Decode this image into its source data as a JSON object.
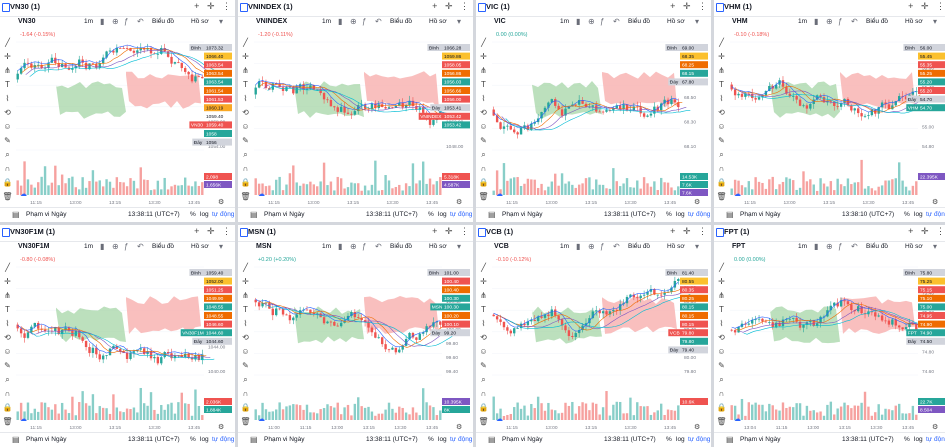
{
  "panels": [
    {
      "title": "VN30 (1)",
      "symbol": "VN30",
      "change": "-1.64 (-0.15%)",
      "change_color": "#ef5350",
      "timeframe": "1m",
      "indicators_label": "Biểu đồ",
      "template_label": "Hồ sơ",
      "range_label": "Phạm vi Ngày",
      "time_label": "13:38:11 (UTC+7)",
      "pct_label": "%",
      "log_label": "log",
      "auto_label": "tự động",
      "x_ticks": [
        "11:15",
        "13:00",
        "13:15",
        "13:30",
        "13:45"
      ],
      "price_labels": [
        {
          "text": "Đỉnh",
          "price": "1073.32",
          "color": "#d1d4dc",
          "fg": "#131722"
        },
        {
          "text": "",
          "price": "1066.40",
          "color": "#fbc02d",
          "fg": "#131722"
        },
        {
          "text": "",
          "price": "1063.54",
          "color": "#ef5350",
          "fg": "#ffffff"
        },
        {
          "text": "",
          "price": "1063.54",
          "color": "#ef6c00",
          "fg": "#ffffff"
        },
        {
          "text": "",
          "price": "1063.54",
          "color": "#26a69a",
          "fg": "#ffffff"
        },
        {
          "text": "",
          "price": "1061.54",
          "color": "#ef6c00",
          "fg": "#ffffff"
        },
        {
          "text": "",
          "price": "1061.53",
          "color": "#ef5350",
          "fg": "#ffffff"
        },
        {
          "text": "",
          "price": "1060.19",
          "color": "#f9a825",
          "fg": "#131722"
        },
        {
          "text": "",
          "price": "1059.40",
          "color": "#ffffff",
          "fg": "#131722"
        },
        {
          "text": "VN30",
          "price": "1059.40",
          "color": "#ef5350",
          "fg": "#ffffff"
        },
        {
          "text": "",
          "price": "1058",
          "color": "#26a69a",
          "fg": "#ffffff"
        },
        {
          "text": "Đáy",
          "price": "1056",
          "color": "#d1d4dc",
          "fg": "#131722"
        }
      ],
      "y_ticks": [
        "1070.00",
        "1066.00",
        "1062.00",
        "1058.00",
        "1054.00"
      ],
      "volume_labels": [
        {
          "text": "2,098",
          "color": "#ef5350"
        },
        {
          "text": "1.656K",
          "color": "#7e57c2"
        }
      ]
    },
    {
      "title": "VNINDEX (1)",
      "symbol": "VNINDEX",
      "change": "-1.20 (-0.11%)",
      "change_color": "#ef5350",
      "timeframe": "1m",
      "indicators_label": "Biểu đồ",
      "template_label": "Hồ sơ",
      "range_label": "Phạm vi Ngày",
      "time_label": "13:38:11 (UTC+7)",
      "pct_label": "%",
      "log_label": "log",
      "auto_label": "tự động",
      "x_ticks": [
        "11:15",
        "13:00",
        "13:15",
        "13:30",
        "13:45"
      ],
      "price_labels": [
        {
          "text": "Đỉnh",
          "price": "1066.28",
          "color": "#d1d4dc",
          "fg": "#131722"
        },
        {
          "text": "",
          "price": "1059.86",
          "color": "#fbc02d",
          "fg": "#131722"
        },
        {
          "text": "",
          "price": "1058.05",
          "color": "#ef5350",
          "fg": "#ffffff"
        },
        {
          "text": "",
          "price": "1056.86",
          "color": "#ef6c00",
          "fg": "#ffffff"
        },
        {
          "text": "",
          "price": "1056.03",
          "color": "#26a69a",
          "fg": "#ffffff"
        },
        {
          "text": "",
          "price": "1056.66",
          "color": "#ef6c00",
          "fg": "#ffffff"
        },
        {
          "text": "",
          "price": "1056.00",
          "color": "#ef5350",
          "fg": "#ffffff"
        },
        {
          "text": "Đáy",
          "price": "1053.41",
          "color": "#d1d4dc",
          "fg": "#131722"
        },
        {
          "text": "VNINDEX",
          "price": "1053.42",
          "color": "#ef5350",
          "fg": "#ffffff"
        },
        {
          "text": "",
          "price": "1053.42",
          "color": "#26a69a",
          "fg": "#ffffff"
        }
      ],
      "y_ticks": [
        "1064.00",
        "1060.00",
        "1056.00",
        "1052.00",
        "1048.00"
      ],
      "volume_labels": [
        {
          "text": "5.318K",
          "color": "#ef5350"
        },
        {
          "text": "4.587K",
          "color": "#7e57c2"
        }
      ]
    },
    {
      "title": "VIC (1)",
      "symbol": "VIC",
      "change": "0.00 (0.00%)",
      "change_color": "#26a69a",
      "timeframe": "1m",
      "indicators_label": "Biểu đồ",
      "template_label": "Hồ sơ",
      "range_label": "Phạm vi Ngày",
      "time_label": "13:38:11 (UTC+7)",
      "pct_label": "%",
      "log_label": "log",
      "auto_label": "tự động",
      "x_ticks": [
        "11:15",
        "13:00",
        "13:15",
        "13:30",
        "13:45"
      ],
      "price_labels": [
        {
          "text": "Đỉnh",
          "price": "69.00",
          "color": "#d1d4dc",
          "fg": "#131722"
        },
        {
          "text": "",
          "price": "68.35",
          "color": "#fbc02d",
          "fg": "#131722"
        },
        {
          "text": "",
          "price": "68.25",
          "color": "#ef6c00",
          "fg": "#ffffff"
        },
        {
          "text": "",
          "price": "68.15",
          "color": "#26a69a",
          "fg": "#ffffff"
        },
        {
          "text": "Đáy",
          "price": "67.80",
          "color": "#d1d4dc",
          "fg": "#131722"
        }
      ],
      "y_ticks": [
        "68.90",
        "68.70",
        "68.50",
        "68.30",
        "68.10"
      ],
      "volume_labels": [
        {
          "text": "14.53K",
          "color": "#26a69a"
        },
        {
          "text": "7.6K",
          "color": "#26a69a"
        },
        {
          "text": "7.6K",
          "color": "#7e57c2"
        }
      ]
    },
    {
      "title": "VHM (1)",
      "symbol": "VHM",
      "change": "-0.10 (-0.18%)",
      "change_color": "#ef5350",
      "timeframe": "1m",
      "indicators_label": "Biểu đồ",
      "template_label": "Hồ sơ",
      "range_label": "Phạm vi Ngày",
      "time_label": "13:38:10 (UTC+7)",
      "pct_label": "%",
      "log_label": "log",
      "auto_label": "tự động",
      "x_ticks": [
        "11:15",
        "13:00",
        "13:15",
        "13:30",
        "13:45"
      ],
      "price_labels": [
        {
          "text": "Đỉnh",
          "price": "56.00",
          "color": "#d1d4dc",
          "fg": "#131722"
        },
        {
          "text": "",
          "price": "55.45",
          "color": "#fbc02d",
          "fg": "#131722"
        },
        {
          "text": "",
          "price": "55.35",
          "color": "#ef5350",
          "fg": "#ffffff"
        },
        {
          "text": "",
          "price": "55.25",
          "color": "#ef6c00",
          "fg": "#ffffff"
        },
        {
          "text": "",
          "price": "55.20",
          "color": "#26a69a",
          "fg": "#ffffff"
        },
        {
          "text": "",
          "price": "55.20",
          "color": "#ef5350",
          "fg": "#ffffff"
        },
        {
          "text": "Đáy",
          "price": "54.70",
          "color": "#d1d4dc",
          "fg": "#131722"
        },
        {
          "text": "VHM",
          "price": "54.70",
          "color": "#26a69a",
          "fg": "#ffffff"
        }
      ],
      "y_ticks": [
        "55.80",
        "55.60",
        "55.40",
        "55.20",
        "55.00",
        "54.80"
      ],
      "volume_labels": [
        {
          "text": "22.395K",
          "color": "#7e57c2"
        }
      ]
    },
    {
      "title": "VN30F1M (1)",
      "symbol": "VN30F1M",
      "change": "-0.80 (-0.08%)",
      "change_color": "#ef5350",
      "timeframe": "1m",
      "indicators_label": "Biểu đồ",
      "template_label": "Hồ sơ",
      "range_label": "Phạm vi Ngày",
      "time_label": "13:38:11 (UTC+7)",
      "pct_label": "%",
      "log_label": "log",
      "auto_label": "tự động",
      "x_ticks": [
        "11:15",
        "13:00",
        "13:15",
        "13:30",
        "13:45"
      ],
      "price_labels": [
        {
          "text": "Đỉnh",
          "price": "1059.40",
          "color": "#d1d4dc",
          "fg": "#131722"
        },
        {
          "text": "",
          "price": "1052.00",
          "color": "#fbc02d",
          "fg": "#131722"
        },
        {
          "text": "",
          "price": "1051.25",
          "color": "#ef5350",
          "fg": "#ffffff"
        },
        {
          "text": "",
          "price": "1049.90",
          "color": "#ef6c00",
          "fg": "#ffffff"
        },
        {
          "text": "",
          "price": "1048.55",
          "color": "#26a69a",
          "fg": "#ffffff"
        },
        {
          "text": "",
          "price": "1048.55",
          "color": "#ef6c00",
          "fg": "#ffffff"
        },
        {
          "text": "",
          "price": "1046.60",
          "color": "#ef5350",
          "fg": "#ffffff"
        },
        {
          "text": "VN30F1M",
          "price": "1044.60",
          "color": "#26a69a",
          "fg": "#ffffff"
        },
        {
          "text": "Đáy",
          "price": "1044.60",
          "color": "#d1d4dc",
          "fg": "#131722"
        }
      ],
      "y_ticks": [
        "1056.00",
        "1052.00",
        "1048.00",
        "1044.00",
        "1040.00"
      ],
      "volume_labels": [
        {
          "text": "2.036K",
          "color": "#ef5350"
        },
        {
          "text": "1.884K",
          "color": "#26a69a"
        }
      ]
    },
    {
      "title": "MSN (1)",
      "symbol": "MSN",
      "change": "+0.20 (+0.20%)",
      "change_color": "#26a69a",
      "timeframe": "1m",
      "indicators_label": "Biểu đồ",
      "template_label": "Hồ sơ",
      "range_label": "Phạm vi Ngày",
      "time_label": "13:38:11 (UTC+7)",
      "pct_label": "%",
      "log_label": "log",
      "auto_label": "tự động",
      "x_ticks": [
        "11:00",
        "11:15",
        "13:00",
        "13:15",
        "13:30",
        "13:45"
      ],
      "price_labels": [
        {
          "text": "Đỉnh",
          "price": "101.00",
          "color": "#d1d4dc",
          "fg": "#131722"
        },
        {
          "text": "",
          "price": "100.40",
          "color": "#ef5350",
          "fg": "#ffffff"
        },
        {
          "text": "",
          "price": "100.40",
          "color": "#ef6c00",
          "fg": "#ffffff"
        },
        {
          "text": "",
          "price": "100.30",
          "color": "#26a69a",
          "fg": "#ffffff"
        },
        {
          "text": "MSN",
          "price": "100.30",
          "color": "#26a69a",
          "fg": "#ffffff"
        },
        {
          "text": "",
          "price": "100.20",
          "color": "#ef6c00",
          "fg": "#ffffff"
        },
        {
          "text": "",
          "price": "100.10",
          "color": "#ef5350",
          "fg": "#ffffff"
        },
        {
          "text": "Đáy",
          "price": "99.20",
          "color": "#d1d4dc",
          "fg": "#131722"
        }
      ],
      "y_ticks": [
        "100.80",
        "100.60",
        "100.40",
        "100.20",
        "100.00",
        "99.80",
        "99.60",
        "99.40"
      ],
      "volume_labels": [
        {
          "text": "10.395K",
          "color": "#7e57c2"
        },
        {
          "text": "8K",
          "color": "#26a69a"
        }
      ]
    },
    {
      "title": "VCB (1)",
      "symbol": "VCB",
      "change": "-0.10 (-0.12%)",
      "change_color": "#ef5350",
      "timeframe": "1m",
      "indicators_label": "Biểu đồ",
      "template_label": "Hồ sơ",
      "range_label": "Phạm vi Ngày",
      "time_label": "13:38:11 (UTC+7)",
      "pct_label": "%",
      "log_label": "log",
      "auto_label": "tự động",
      "x_ticks": [
        "11:15",
        "13:00",
        "13:15",
        "13:30",
        "13:45"
      ],
      "price_labels": [
        {
          "text": "Đỉnh",
          "price": "81.40",
          "color": "#d1d4dc",
          "fg": "#131722"
        },
        {
          "text": "",
          "price": "80.55",
          "color": "#fbc02d",
          "fg": "#131722"
        },
        {
          "text": "",
          "price": "80.35",
          "color": "#ef5350",
          "fg": "#ffffff"
        },
        {
          "text": "",
          "price": "80.25",
          "color": "#ef6c00",
          "fg": "#ffffff"
        },
        {
          "text": "",
          "price": "80.15",
          "color": "#26a69a",
          "fg": "#ffffff"
        },
        {
          "text": "",
          "price": "80.15",
          "color": "#ef6c00",
          "fg": "#ffffff"
        },
        {
          "text": "",
          "price": "80.15",
          "color": "#ef5350",
          "fg": "#ffffff"
        },
        {
          "text": "VCB",
          "price": "79.80",
          "color": "#ef5350",
          "fg": "#ffffff"
        },
        {
          "text": "",
          "price": "79.80",
          "color": "#26a69a",
          "fg": "#ffffff"
        },
        {
          "text": "Đáy",
          "price": "79.40",
          "color": "#d1d4dc",
          "fg": "#131722"
        }
      ],
      "y_ticks": [
        "81.20",
        "81.00",
        "80.80",
        "80.60",
        "80.40",
        "80.20",
        "80.00",
        "79.80"
      ],
      "volume_labels": [
        {
          "text": "10.6K",
          "color": "#ef5350"
        }
      ]
    },
    {
      "title": "FPT (1)",
      "symbol": "FPT",
      "change": "0.00 (0.00%)",
      "change_color": "#26a69a",
      "timeframe": "1m",
      "indicators_label": "Biểu đồ",
      "template_label": "Hồ sơ",
      "range_label": "Phạm vi Ngày",
      "time_label": "13:38:11 (UTC+7)",
      "pct_label": "%",
      "log_label": "log",
      "auto_label": "tự động",
      "x_ticks": [
        "13:04",
        "11:15",
        "13:00",
        "13:15",
        "13:30",
        "13:45"
      ],
      "price_labels": [
        {
          "text": "Đỉnh",
          "price": "75.80",
          "color": "#d1d4dc",
          "fg": "#131722"
        },
        {
          "text": "",
          "price": "75.25",
          "color": "#fbc02d",
          "fg": "#131722"
        },
        {
          "text": "",
          "price": "75.15",
          "color": "#ef5350",
          "fg": "#ffffff"
        },
        {
          "text": "",
          "price": "75.10",
          "color": "#ef6c00",
          "fg": "#ffffff"
        },
        {
          "text": "",
          "price": "75.00",
          "color": "#26a69a",
          "fg": "#ffffff"
        },
        {
          "text": "",
          "price": "74.95",
          "color": "#ef5350",
          "fg": "#ffffff"
        },
        {
          "text": "",
          "price": "74.90",
          "color": "#ef6c00",
          "fg": "#ffffff"
        },
        {
          "text": "FPT",
          "price": "74.90",
          "color": "#26a69a",
          "fg": "#ffffff"
        },
        {
          "text": "Đáy",
          "price": "74.50",
          "color": "#d1d4dc",
          "fg": "#131722"
        }
      ],
      "y_ticks": [
        "75.60",
        "75.40",
        "75.20",
        "75.00",
        "74.80",
        "74.60"
      ],
      "volume_labels": [
        {
          "text": "22.7K",
          "color": "#26a69a"
        },
        {
          "text": "8.504",
          "color": "#7e57c2"
        }
      ]
    }
  ],
  "icons": {
    "title_buttons": [
      "plus-icon",
      "crosshair-icon",
      "more-icon"
    ],
    "left_tools": [
      "trendline-icon",
      "crosshair-icon",
      "pitchfork-icon",
      "text-icon",
      "pattern-icon",
      "measure-icon",
      "emoji-icon",
      "ruler-icon",
      "zoom-icon",
      "magnet-icon",
      "lock-icon",
      "trash-icon"
    ]
  },
  "colors": {
    "up": "#26a69a",
    "down": "#ef5350",
    "ichimoku_green": "#a5d6a7",
    "ichimoku_red": "#f7a9a8",
    "accent": "#2962ff"
  }
}
